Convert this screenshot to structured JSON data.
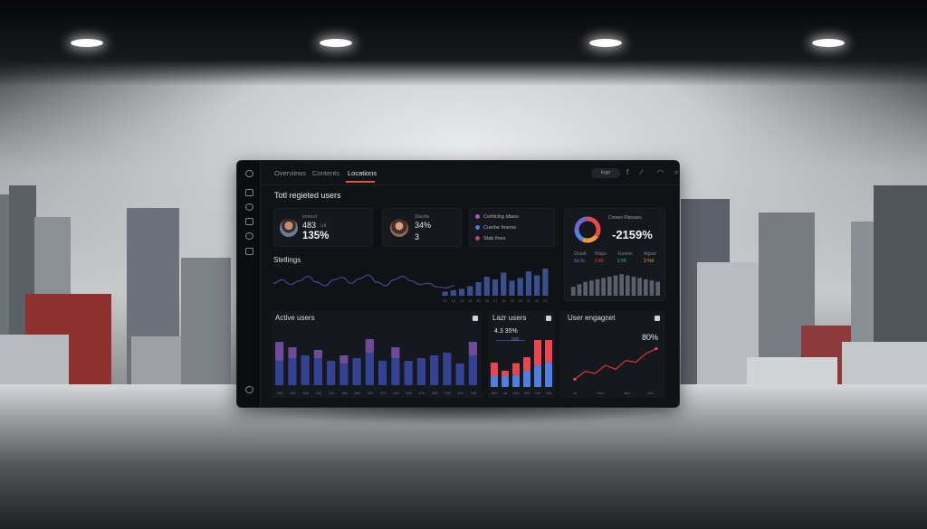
{
  "tabs": [
    {
      "label": "Overviews",
      "active": false
    },
    {
      "label": "Contents",
      "active": false
    },
    {
      "label": "Locations",
      "active": true
    }
  ],
  "topbar": {
    "pill_label": "Iogo",
    "icons": [
      "facebook-icon",
      "link-icon",
      "bell-icon",
      "search-icon"
    ]
  },
  "sidebar": {
    "icons": [
      "home-icon",
      "people-icon",
      "globe-icon",
      "lock-icon",
      "settings-icon",
      "user-icon"
    ],
    "bottom_icon": "compass-icon"
  },
  "page_title": "Totl regieted users",
  "users": [
    {
      "sublabel": "Inmesil",
      "value_small": "483",
      "value_small_note": "Ud",
      "value_big": "135%"
    },
    {
      "sublabel": "Slaside",
      "value_small": "34%",
      "value_big": "3"
    }
  ],
  "legend_card": {
    "items": [
      {
        "label": "Cortliclng Idlass",
        "color": "#c04fb6"
      },
      {
        "label": "Cuerbe Itnerss",
        "color": "#4f76d6"
      },
      {
        "label": "Stab Ilnes",
        "color": "#b04a7a"
      }
    ]
  },
  "donut_card": {
    "title": "Comes Platoues",
    "value": "-2159%",
    "cols": [
      {
        "label": "Orsatt",
        "sub": "Ss %",
        "color": "#4f84e8"
      },
      {
        "label": "Hlaps",
        "sub": "2 65",
        "color": "#e8484e"
      },
      {
        "label": "Vunese",
        "sub": "2 55",
        "color": "#46c27a"
      },
      {
        "label": "Algsal",
        "sub": "3 %0",
        "color": "#f29a3a"
      }
    ],
    "slices": [
      0.35,
      0.22,
      0.18,
      0.25
    ],
    "slice_colors": [
      "#e8484e",
      "#f29a3a",
      "#4f84e8",
      "#7a5fd0"
    ],
    "bars": [
      0.35,
      0.45,
      0.55,
      0.6,
      0.65,
      0.7,
      0.75,
      0.8,
      0.85,
      0.8,
      0.75,
      0.7,
      0.65,
      0.6,
      0.55
    ]
  },
  "stellings": {
    "title": "Stellings",
    "line": [
      0.45,
      0.6,
      0.4,
      0.55,
      0.75,
      0.5,
      0.35,
      0.6,
      0.7,
      0.45,
      0.65,
      0.8,
      0.5,
      0.35,
      0.6,
      0.75,
      0.55,
      0.4,
      0.45,
      0.3,
      0.25,
      0.35
    ],
    "bars": [
      0.15,
      0.2,
      0.25,
      0.35,
      0.5,
      0.7,
      0.6,
      0.85,
      0.55,
      0.65,
      0.9,
      0.75,
      1.0
    ],
    "tick_labels": [
      "11",
      "12",
      "13",
      "14",
      "15",
      "16",
      "17",
      "18",
      "19",
      "20",
      "21",
      "22",
      "23"
    ]
  },
  "active_users": {
    "title": "Active users",
    "categories": [
      "245",
      "285",
      "386",
      "245",
      "310",
      "288",
      "380",
      "325",
      "270",
      "390",
      "286",
      "275",
      "280",
      "295",
      "321",
      "308"
    ],
    "blue": [
      0.45,
      0.5,
      0.55,
      0.5,
      0.45,
      0.4,
      0.5,
      0.6,
      0.45,
      0.5,
      0.45,
      0.5,
      0.55,
      0.6,
      0.4,
      0.55
    ],
    "purple": [
      0.35,
      0.2,
      0.0,
      0.15,
      0.0,
      0.15,
      0.0,
      0.25,
      0.0,
      0.2,
      0.0,
      0.0,
      0.0,
      0.0,
      0.0,
      0.25
    ]
  },
  "laser_users": {
    "title": "Lazr users",
    "value": "4.3 35%",
    "note": "500",
    "categories": [
      "300",
      "4d",
      "245",
      "395",
      "230",
      "256"
    ],
    "blue": [
      0.2,
      0.2,
      0.22,
      0.3,
      0.4,
      0.45
    ],
    "red": [
      0.25,
      0.1,
      0.22,
      0.25,
      0.5,
      0.55
    ]
  },
  "engagement": {
    "title": "User engagnet",
    "value": "80%",
    "line": [
      0.15,
      0.35,
      0.3,
      0.5,
      0.4,
      0.62,
      0.58,
      0.8,
      0.92
    ],
    "tick_labels": [
      "0s",
      "Hsd",
      "Nov",
      "Dsc"
    ]
  },
  "colors": {
    "accent": "#e2593a",
    "blue": "#3a4fa6",
    "purple": "#6f4a9a",
    "red": "#e8474f",
    "bright_blue": "#4f7fe0"
  }
}
